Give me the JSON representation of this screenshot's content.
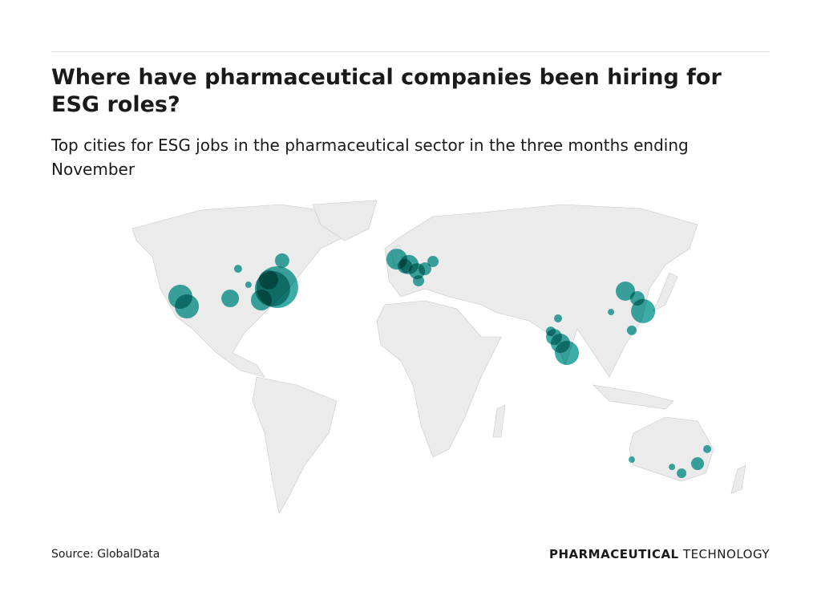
{
  "chart_data": {
    "type": "map",
    "title": "Where have pharmaceutical companies been hiring for ESG roles?",
    "subtitle": "Top cities for ESG jobs in the pharmaceutical sector in the three months ending November",
    "source": "Source: GlobalData",
    "brand": {
      "bold": "PHARMACEUTICAL",
      "light": "TECHNOLOGY"
    },
    "color": "#1a9e98",
    "points": [
      {
        "lon": -116.7,
        "lat": 37.2,
        "size": 15
      },
      {
        "lon": -113.3,
        "lat": 33.1,
        "size": 15
      },
      {
        "lon": -90.8,
        "lat": 36.5,
        "size": 11
      },
      {
        "lon": -86.7,
        "lat": 49.1,
        "size": 5
      },
      {
        "lon": -81.3,
        "lat": 42.3,
        "size": 4
      },
      {
        "lon": -63.8,
        "lat": 52.6,
        "size": 9
      },
      {
        "lon": -68.8,
        "lat": 40.6,
        "size": 22
      },
      {
        "lon": -66.3,
        "lat": 41.3,
        "size": 26
      },
      {
        "lon": -74.6,
        "lat": 35.8,
        "size": 13
      },
      {
        "lon": -70.8,
        "lat": 44.4,
        "size": 12
      },
      {
        "lon": -4.2,
        "lat": 53.2,
        "size": 13
      },
      {
        "lon": 2.1,
        "lat": 50.9,
        "size": 12
      },
      {
        "lon": 6.3,
        "lat": 48.1,
        "size": 10
      },
      {
        "lon": 10.4,
        "lat": 49.1,
        "size": 8
      },
      {
        "lon": 14.6,
        "lat": 52.2,
        "size": 7
      },
      {
        "lon": 7.1,
        "lat": 44.0,
        "size": 7
      },
      {
        "lon": 0,
        "lat": 50.2,
        "size": 9
      },
      {
        "lon": 79.6,
        "lat": 28.0,
        "size": 5
      },
      {
        "lon": 77.5,
        "lat": 20.1,
        "size": 10
      },
      {
        "lon": 80.8,
        "lat": 17.4,
        "size": 12
      },
      {
        "lon": 84.2,
        "lat": 13.3,
        "size": 15
      },
      {
        "lon": 75.8,
        "lat": 22.5,
        "size": 6
      },
      {
        "lon": 114.6,
        "lat": 39.6,
        "size": 12
      },
      {
        "lon": 120.8,
        "lat": 36.5,
        "size": 9
      },
      {
        "lon": 123.8,
        "lat": 31.1,
        "size": 15
      },
      {
        "lon": 117.9,
        "lat": 22.9,
        "size": 6
      },
      {
        "lon": 107.1,
        "lat": 30.7,
        "size": 4
      },
      {
        "lon": 117.9,
        "lat": -32.1,
        "size": 4
      },
      {
        "lon": 157.1,
        "lat": -27.6,
        "size": 5
      },
      {
        "lon": 152.1,
        "lat": -33.8,
        "size": 8
      },
      {
        "lon": 143.8,
        "lat": -37.9,
        "size": 6
      },
      {
        "lon": 138.8,
        "lat": -35.2,
        "size": 4
      }
    ]
  }
}
